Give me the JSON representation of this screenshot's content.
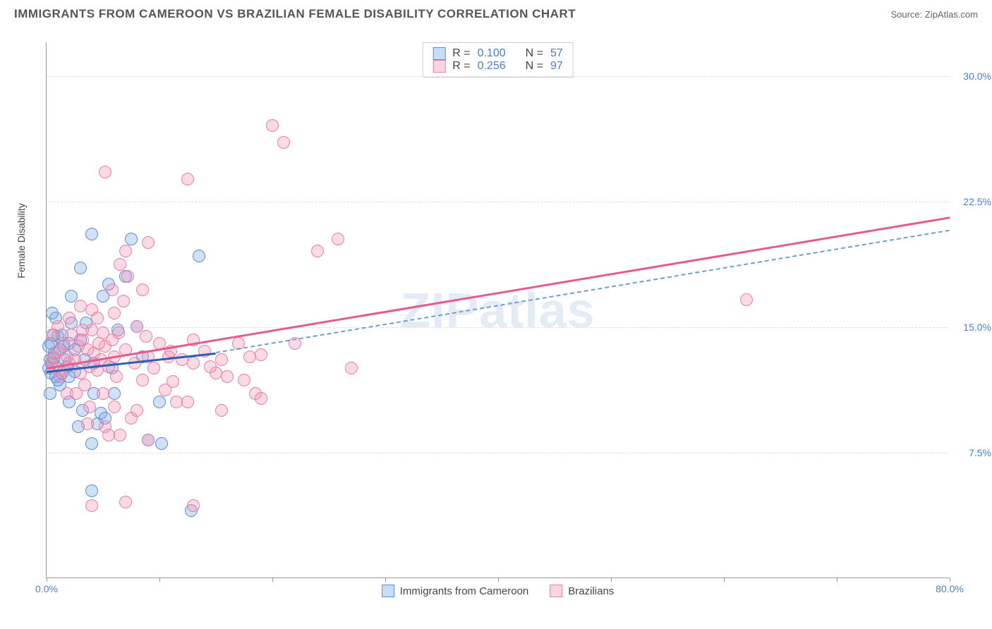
{
  "header": {
    "title": "IMMIGRANTS FROM CAMEROON VS BRAZILIAN FEMALE DISABILITY CORRELATION CHART",
    "source_prefix": "Source: ",
    "source_name": "ZipAtlas.com"
  },
  "chart": {
    "type": "scatter",
    "y_axis_label": "Female Disability",
    "watermark": "ZIPatlas",
    "xlim": [
      0,
      80
    ],
    "ylim": [
      0,
      32
    ],
    "x_ticks": [
      0,
      10,
      20,
      30,
      40,
      50,
      60,
      70,
      80
    ],
    "x_tick_labels": {
      "0": "0.0%",
      "80": "80.0%"
    },
    "y_gridlines": [
      7.5,
      15.0,
      22.5,
      30.0
    ],
    "y_tick_labels": [
      "7.5%",
      "15.0%",
      "22.5%",
      "30.0%"
    ],
    "background_color": "#ffffff",
    "grid_color": "#dddddd",
    "axis_color": "#999999",
    "tick_label_color": "#4a7ec9",
    "series": [
      {
        "id": "blue",
        "label": "Immigrants from Cameroon",
        "fill_color": "rgba(120,170,230,0.35)",
        "stroke_color": "#5a8ed0",
        "line_color": "#2c5fb3",
        "correlation_r": "0.100",
        "n": "57",
        "trend_solid": {
          "x1": 0,
          "y1": 12.4,
          "x2": 15,
          "y2": 13.5
        },
        "trend_dash": {
          "x1": 15,
          "y1": 13.5,
          "x2": 80,
          "y2": 20.8
        },
        "points": [
          [
            0.2,
            12.5
          ],
          [
            0.3,
            13.0
          ],
          [
            0.4,
            12.2
          ],
          [
            0.5,
            12.8
          ],
          [
            0.6,
            13.1
          ],
          [
            0.7,
            13.4
          ],
          [
            0.8,
            12.0
          ],
          [
            1.0,
            14.4
          ],
          [
            1.2,
            11.5
          ],
          [
            1.5,
            13.8
          ],
          [
            1.8,
            12.6
          ],
          [
            2.0,
            14.0
          ],
          [
            2.2,
            15.2
          ],
          [
            2.5,
            12.3
          ],
          [
            3.0,
            18.5
          ],
          [
            3.2,
            10.0
          ],
          [
            3.5,
            15.2
          ],
          [
            4.0,
            20.5
          ],
          [
            4.2,
            12.8
          ],
          [
            4.5,
            9.2
          ],
          [
            5.0,
            16.8
          ],
          [
            5.5,
            17.5
          ],
          [
            6.0,
            11.0
          ],
          [
            6.3,
            14.8
          ],
          [
            7.0,
            18.0
          ],
          [
            7.5,
            20.2
          ],
          [
            8.0,
            15.0
          ],
          [
            8.5,
            13.2
          ],
          [
            4.0,
            5.2
          ],
          [
            9.0,
            8.2
          ],
          [
            10.0,
            10.5
          ],
          [
            13.5,
            19.2
          ],
          [
            10.2,
            8.0
          ],
          [
            4.8,
            9.8
          ],
          [
            5.2,
            9.5
          ],
          [
            4.0,
            8.0
          ],
          [
            2.0,
            10.5
          ],
          [
            1.6,
            13.0
          ],
          [
            2.2,
            16.8
          ],
          [
            3.0,
            14.2
          ],
          [
            1.0,
            11.8
          ],
          [
            0.4,
            14.0
          ],
          [
            0.6,
            14.5
          ],
          [
            0.8,
            15.5
          ],
          [
            1.2,
            13.6
          ],
          [
            1.4,
            12.2
          ],
          [
            3.4,
            13.0
          ],
          [
            1.4,
            14.5
          ],
          [
            2.0,
            12.0
          ],
          [
            4.2,
            11.0
          ],
          [
            5.8,
            12.5
          ],
          [
            2.5,
            13.6
          ],
          [
            0.2,
            13.8
          ],
          [
            0.3,
            11.0
          ],
          [
            0.5,
            15.8
          ],
          [
            2.8,
            9.0
          ],
          [
            12.8,
            4.0
          ]
        ]
      },
      {
        "id": "pink",
        "label": "Brazilians",
        "fill_color": "rgba(245,150,180,0.35)",
        "stroke_color": "#e87fa5",
        "line_color": "#e85a8c",
        "correlation_r": "0.256",
        "n": "97",
        "trend_solid": {
          "x1": 0,
          "y1": 12.6,
          "x2": 80,
          "y2": 21.6
        },
        "points": [
          [
            0.4,
            12.8
          ],
          [
            0.6,
            13.2
          ],
          [
            0.8,
            12.5
          ],
          [
            1.0,
            13.5
          ],
          [
            1.2,
            12.0
          ],
          [
            1.5,
            14.0
          ],
          [
            1.8,
            13.2
          ],
          [
            2.0,
            12.8
          ],
          [
            2.2,
            14.5
          ],
          [
            2.5,
            13.0
          ],
          [
            2.8,
            13.8
          ],
          [
            3.0,
            12.2
          ],
          [
            3.2,
            14.2
          ],
          [
            3.4,
            11.5
          ],
          [
            3.6,
            13.6
          ],
          [
            3.8,
            12.6
          ],
          [
            4.0,
            14.8
          ],
          [
            4.2,
            13.4
          ],
          [
            4.5,
            12.4
          ],
          [
            4.8,
            13.0
          ],
          [
            5.0,
            14.6
          ],
          [
            5.2,
            13.8
          ],
          [
            5.5,
            12.6
          ],
          [
            5.8,
            14.2
          ],
          [
            6.0,
            13.2
          ],
          [
            6.2,
            12.0
          ],
          [
            6.5,
            18.7
          ],
          [
            6.8,
            16.5
          ],
          [
            7.0,
            13.6
          ],
          [
            7.2,
            18.0
          ],
          [
            3.6,
            9.2
          ],
          [
            7.8,
            12.8
          ],
          [
            8.0,
            15.0
          ],
          [
            8.5,
            11.8
          ],
          [
            9.0,
            13.2
          ],
          [
            9.0,
            20.0
          ],
          [
            9.5,
            12.5
          ],
          [
            10.0,
            14.0
          ],
          [
            10.5,
            11.2
          ],
          [
            11.0,
            13.5
          ],
          [
            11.5,
            10.5
          ],
          [
            12.0,
            13.0
          ],
          [
            5.2,
            9.0
          ],
          [
            13.0,
            12.8
          ],
          [
            14.0,
            13.5
          ],
          [
            15.0,
            12.2
          ],
          [
            15.5,
            13.0
          ],
          [
            16.0,
            12.0
          ],
          [
            17.0,
            14.0
          ],
          [
            18.0,
            13.2
          ],
          [
            18.5,
            11.0
          ],
          [
            19.0,
            10.7
          ],
          [
            20.0,
            27.0
          ],
          [
            21.0,
            26.0
          ],
          [
            22.0,
            14.0
          ],
          [
            9.0,
            8.2
          ],
          [
            24.0,
            19.5
          ],
          [
            25.8,
            20.2
          ],
          [
            27.0,
            12.5
          ],
          [
            62.0,
            16.6
          ],
          [
            12.5,
            23.8
          ],
          [
            5.2,
            24.2
          ],
          [
            6.5,
            8.5
          ],
          [
            8.5,
            17.2
          ],
          [
            7.0,
            19.5
          ],
          [
            4.0,
            16.0
          ],
          [
            6.0,
            15.8
          ],
          [
            7.5,
            9.5
          ],
          [
            5.0,
            11.0
          ],
          [
            19.0,
            13.3
          ],
          [
            8.8,
            14.4
          ],
          [
            6.0,
            10.2
          ],
          [
            2.0,
            15.5
          ],
          [
            3.0,
            16.2
          ],
          [
            4.5,
            15.5
          ],
          [
            1.0,
            15.0
          ],
          [
            0.5,
            14.5
          ],
          [
            3.2,
            14.8
          ],
          [
            4.6,
            14.0
          ],
          [
            6.4,
            14.6
          ],
          [
            1.5,
            12.4
          ],
          [
            1.8,
            11.0
          ],
          [
            2.6,
            11.0
          ],
          [
            3.8,
            10.2
          ],
          [
            8.0,
            10.0
          ],
          [
            5.5,
            8.5
          ],
          [
            4.0,
            4.3
          ],
          [
            7.0,
            4.5
          ],
          [
            13.0,
            4.3
          ],
          [
            12.5,
            10.5
          ],
          [
            14.5,
            12.6
          ],
          [
            15.5,
            10.0
          ],
          [
            17.5,
            11.8
          ],
          [
            13.0,
            14.2
          ],
          [
            11.2,
            11.7
          ],
          [
            10.8,
            13.2
          ],
          [
            5.8,
            17.2
          ]
        ]
      }
    ]
  }
}
